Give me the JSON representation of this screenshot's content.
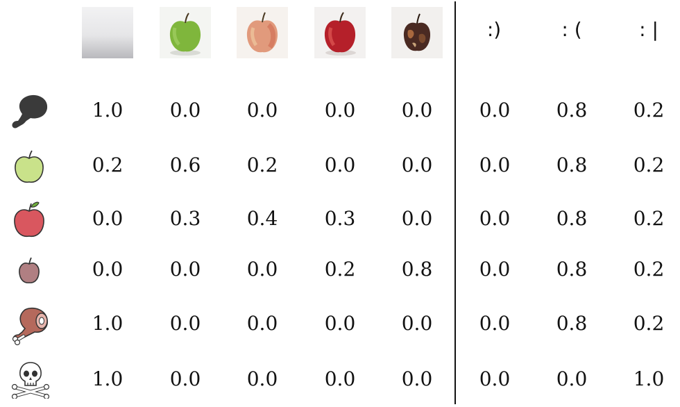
{
  "column_headers": [
    {
      "kind": "image",
      "icon": "empty-plate-icon"
    },
    {
      "kind": "image",
      "icon": "green-apple-photo"
    },
    {
      "kind": "image",
      "icon": "pink-apple-photo"
    },
    {
      "kind": "image",
      "icon": "red-apple-photo"
    },
    {
      "kind": "image",
      "icon": "rotten-apple-photo"
    },
    {
      "kind": "text",
      "label": ":)"
    },
    {
      "kind": "text",
      "label": ": ("
    },
    {
      "kind": "text",
      "label": ": |"
    }
  ],
  "rows": [
    {
      "icon": "dark-drumstick-icon",
      "values": [
        "1.0",
        "0.0",
        "0.0",
        "0.0",
        "0.0",
        "0.0",
        "0.8",
        "0.2"
      ]
    },
    {
      "icon": "green-apple-icon",
      "values": [
        "0.2",
        "0.6",
        "0.2",
        "0.0",
        "0.0",
        "0.0",
        "0.8",
        "0.2"
      ]
    },
    {
      "icon": "red-apple-icon",
      "values": [
        "0.0",
        "0.3",
        "0.4",
        "0.3",
        "0.0",
        "0.0",
        "0.8",
        "0.2"
      ]
    },
    {
      "icon": "small-brown-apple-icon",
      "values": [
        "0.0",
        "0.0",
        "0.0",
        "0.2",
        "0.8",
        "0.0",
        "0.8",
        "0.2"
      ]
    },
    {
      "icon": "meat-leg-icon",
      "values": [
        "1.0",
        "0.0",
        "0.0",
        "0.0",
        "0.0",
        "0.0",
        "0.8",
        "0.2"
      ]
    },
    {
      "icon": "skull-crossbones-icon",
      "values": [
        "1.0",
        "0.0",
        "0.0",
        "0.0",
        "0.0",
        "0.0",
        "0.0",
        "1.0"
      ]
    }
  ],
  "colors": {
    "green_apple": "#c9e28a",
    "red_apple": "#d9575f",
    "brown_apple": "#b07f82",
    "meat": "#b5695c",
    "drumstick": "#3a3a3a",
    "divider": "#111111"
  }
}
